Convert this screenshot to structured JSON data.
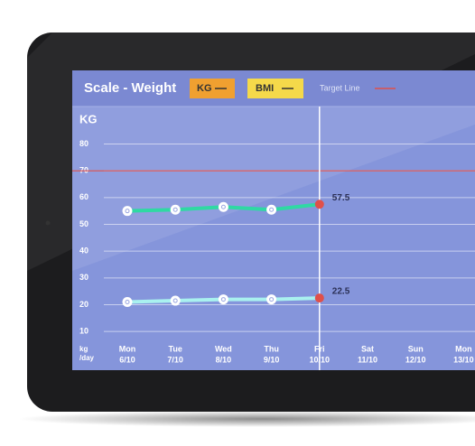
{
  "chart_data": {
    "type": "line",
    "title": "Scale - Weight",
    "y_label": "KG",
    "x_label": "kg /day",
    "categories": [
      "Mon",
      "Tue",
      "Wed",
      "Thu",
      "Fri",
      "Sat",
      "Sun",
      "Mon"
    ],
    "category_dates": [
      "6/10",
      "7/10",
      "8/10",
      "9/10",
      "10/10",
      "11/10",
      "12/10",
      "13/10"
    ],
    "series": [
      {
        "name": "KG",
        "color": "#2fd9a3",
        "legend_color": "#f0a030",
        "values": [
          55,
          55.5,
          56.5,
          55.5,
          57.5,
          null,
          null,
          null
        ]
      },
      {
        "name": "BMI",
        "color": "#a9f1ef",
        "legend_color": "#f5d94a",
        "values": [
          21,
          21.5,
          22,
          22,
          22.5,
          null,
          null,
          null
        ]
      }
    ],
    "target": {
      "name": "Target Line",
      "value": 70,
      "color": "#e0504a"
    },
    "highlight_index": 4,
    "ylim": [
      5,
      94
    ],
    "yticks": [
      10,
      20,
      30,
      40,
      50,
      60,
      70,
      80
    ],
    "grid": true
  }
}
